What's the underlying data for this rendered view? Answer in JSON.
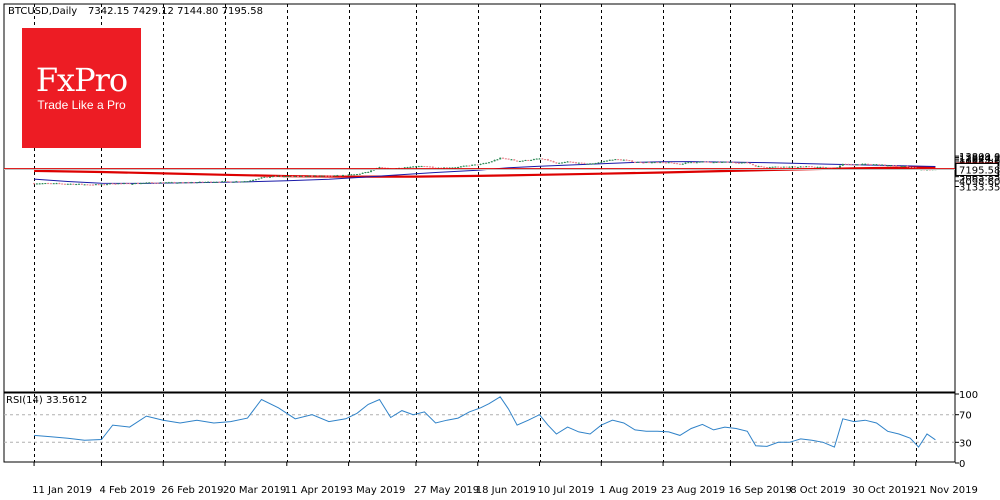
{
  "header": {
    "symbol": "BTCUSD,Daily",
    "ohlc": "7342.15 7429.12 7144.80 7195.58"
  },
  "logo": {
    "brand": "FxPro",
    "tagline": "Trade Like a Pro"
  },
  "colors": {
    "bull": "#2e8b57",
    "bear": "#e8808a",
    "ma_fast": "#1a1aa8",
    "ma_slow": "#dd0000",
    "level_line": "#dd0000",
    "rsi": "#2f82c8",
    "grid": "#000000"
  },
  "chart_data": [
    {
      "type": "candlestick",
      "title": "BTCUSD,Daily",
      "price_axis_ticks": [
        "13809.00",
        "12844.35",
        "11879.70",
        "10884.05",
        "9919.35",
        "8954.15",
        "7988.85",
        "6994.15",
        "6029.75",
        "5063.85",
        "4098.60",
        "3133.35"
      ],
      "price_axis_values": [
        13809.0,
        12844.35,
        11879.7,
        10884.05,
        9919.35,
        8954.15,
        7988.85,
        6994.15,
        6029.75,
        5063.85,
        4098.6,
        3133.35
      ],
      "ylim": [
        3133.35,
        13809.0
      ],
      "date_axis_labels": [
        "11 Jan 2019",
        "4 Feb 2019",
        "26 Feb 2019",
        "20 Mar 2019",
        "11 Apr 2019",
        "3 May 2019",
        "27 May 2019",
        "18 Jun 2019",
        "10 Jul 2019",
        "1 Aug 2019",
        "23 Aug 2019",
        "16 Sep 2019",
        "8 Oct 2019",
        "30 Oct 2019",
        "21 Nov 2019"
      ],
      "date_axis_dates": [
        "2019-01-11",
        "2019-02-04",
        "2019-02-26",
        "2019-03-20",
        "2019-04-11",
        "2019-05-03",
        "2019-05-27",
        "2019-06-18",
        "2019-07-10",
        "2019-08-01",
        "2019-08-23",
        "2019-09-16",
        "2019-10-08",
        "2019-10-30",
        "2019-11-21"
      ],
      "close_path": [
        [
          "2019-01-11",
          3680
        ],
        [
          "2019-01-17",
          3640
        ],
        [
          "2019-01-23",
          3580
        ],
        [
          "2019-01-29",
          3480
        ],
        [
          "2019-02-04",
          3430
        ],
        [
          "2019-02-08",
          3650
        ],
        [
          "2019-02-14",
          3620
        ],
        [
          "2019-02-20",
          3760
        ],
        [
          "2019-02-26",
          3800
        ],
        [
          "2019-03-04",
          3780
        ],
        [
          "2019-03-10",
          3860
        ],
        [
          "2019-03-16",
          3960
        ],
        [
          "2019-03-22",
          3990
        ],
        [
          "2019-03-28",
          4080
        ],
        [
          "2019-04-02",
          4850
        ],
        [
          "2019-04-08",
          5220
        ],
        [
          "2019-04-14",
          5100
        ],
        [
          "2019-04-20",
          5310
        ],
        [
          "2019-04-26",
          5210
        ],
        [
          "2019-05-02",
          5450
        ],
        [
          "2019-05-06",
          5720
        ],
        [
          "2019-05-10",
          6400
        ],
        [
          "2019-05-14",
          7900
        ],
        [
          "2019-05-18",
          7350
        ],
        [
          "2019-05-22",
          7920
        ],
        [
          "2019-05-26",
          8160
        ],
        [
          "2019-05-30",
          8600
        ],
        [
          "2019-06-03",
          7800
        ],
        [
          "2019-06-07",
          7900
        ],
        [
          "2019-06-11",
          8050
        ],
        [
          "2019-06-15",
          8800
        ],
        [
          "2019-06-19",
          9300
        ],
        [
          "2019-06-22",
          10200
        ],
        [
          "2019-06-26",
          12500
        ],
        [
          "2019-06-29",
          12000
        ],
        [
          "2019-07-02",
          10800
        ],
        [
          "2019-07-06",
          11400
        ],
        [
          "2019-07-10",
          12200
        ],
        [
          "2019-07-13",
          11300
        ],
        [
          "2019-07-16",
          9500
        ],
        [
          "2019-07-20",
          10500
        ],
        [
          "2019-07-24",
          9800
        ],
        [
          "2019-07-28",
          9500
        ],
        [
          "2019-08-01",
          10400
        ],
        [
          "2019-08-05",
          11800
        ],
        [
          "2019-08-09",
          11500
        ],
        [
          "2019-08-13",
          10300
        ],
        [
          "2019-08-17",
          10200
        ],
        [
          "2019-08-21",
          10100
        ],
        [
          "2019-08-25",
          10000
        ],
        [
          "2019-08-29",
          9500
        ],
        [
          "2019-09-02",
          10300
        ],
        [
          "2019-09-06",
          10500
        ],
        [
          "2019-09-10",
          10100
        ],
        [
          "2019-09-14",
          10350
        ],
        [
          "2019-09-18",
          10150
        ],
        [
          "2019-09-22",
          9950
        ],
        [
          "2019-09-25",
          8450
        ],
        [
          "2019-09-29",
          8100
        ],
        [
          "2019-10-03",
          8250
        ],
        [
          "2019-10-07",
          8150
        ],
        [
          "2019-10-11",
          8300
        ],
        [
          "2019-10-15",
          8200
        ],
        [
          "2019-10-19",
          7950
        ],
        [
          "2019-10-23",
          7450
        ],
        [
          "2019-10-26",
          9300
        ],
        [
          "2019-10-30",
          9150
        ],
        [
          "2019-11-03",
          9300
        ],
        [
          "2019-11-07",
          9200
        ],
        [
          "2019-11-11",
          8750
        ],
        [
          "2019-11-15",
          8550
        ],
        [
          "2019-11-19",
          8150
        ],
        [
          "2019-11-22",
          7300
        ],
        [
          "2019-11-25",
          7100
        ],
        [
          "2019-11-28",
          7195.58
        ]
      ],
      "ma_fast_path": [
        [
          "2019-01-11",
          4500
        ],
        [
          "2019-01-23",
          4000
        ],
        [
          "2019-02-04",
          3680
        ],
        [
          "2019-02-20",
          3650
        ],
        [
          "2019-03-10",
          3800
        ],
        [
          "2019-03-26",
          3900
        ],
        [
          "2019-04-11",
          4150
        ],
        [
          "2019-04-26",
          4450
        ],
        [
          "2019-05-08",
          4900
        ],
        [
          "2019-05-20",
          5500
        ],
        [
          "2019-06-03",
          6200
        ],
        [
          "2019-06-18",
          6900
        ],
        [
          "2019-06-29",
          7800
        ],
        [
          "2019-07-10",
          8450
        ],
        [
          "2019-07-22",
          9000
        ],
        [
          "2019-08-01",
          9500
        ],
        [
          "2019-08-12",
          10100
        ],
        [
          "2019-08-23",
          10500
        ],
        [
          "2019-09-01",
          10550
        ],
        [
          "2019-09-16",
          10300
        ],
        [
          "2019-09-28",
          10050
        ],
        [
          "2019-10-08",
          9700
        ],
        [
          "2019-10-20",
          9350
        ],
        [
          "2019-11-01",
          9000
        ],
        [
          "2019-11-12",
          8750
        ],
        [
          "2019-11-28",
          8300
        ]
      ],
      "ma_slow_path": [
        [
          "2019-01-11",
          6700
        ],
        [
          "2019-02-04",
          6350
        ],
        [
          "2019-02-26",
          5950
        ],
        [
          "2019-03-20",
          5550
        ],
        [
          "2019-04-11",
          5200
        ],
        [
          "2019-05-03",
          5050
        ],
        [
          "2019-05-27",
          5080
        ],
        [
          "2019-06-18",
          5250
        ],
        [
          "2019-07-10",
          5550
        ],
        [
          "2019-08-01",
          5850
        ],
        [
          "2019-08-23",
          6200
        ],
        [
          "2019-09-16",
          6700
        ],
        [
          "2019-10-08",
          7200
        ],
        [
          "2019-10-30",
          7600
        ],
        [
          "2019-11-28",
          8050
        ]
      ],
      "level_line": {
        "value": 7500.0,
        "label": "7500.00"
      },
      "last_price": {
        "value": 7195.58,
        "label": "7195.58"
      }
    },
    {
      "type": "line",
      "title": "RSI(14) 33.5612",
      "ylim": [
        0,
        100
      ],
      "axis_ticks": [
        "100",
        "70",
        "30",
        "0"
      ],
      "axis_values": [
        100,
        70,
        30,
        0
      ],
      "levels": [
        70,
        30
      ],
      "current": 33.5612,
      "values": [
        [
          "2019-01-11",
          40
        ],
        [
          "2019-01-17",
          38
        ],
        [
          "2019-01-23",
          36
        ],
        [
          "2019-01-29",
          33
        ],
        [
          "2019-02-04",
          34
        ],
        [
          "2019-02-08",
          55
        ],
        [
          "2019-02-14",
          52
        ],
        [
          "2019-02-20",
          68
        ],
        [
          "2019-02-26",
          62
        ],
        [
          "2019-03-04",
          58
        ],
        [
          "2019-03-10",
          62
        ],
        [
          "2019-03-16",
          58
        ],
        [
          "2019-03-22",
          60
        ],
        [
          "2019-03-28",
          65
        ],
        [
          "2019-04-02",
          92
        ],
        [
          "2019-04-08",
          80
        ],
        [
          "2019-04-14",
          64
        ],
        [
          "2019-04-20",
          70
        ],
        [
          "2019-04-26",
          60
        ],
        [
          "2019-05-02",
          64
        ],
        [
          "2019-05-06",
          72
        ],
        [
          "2019-05-10",
          85
        ],
        [
          "2019-05-14",
          92
        ],
        [
          "2019-05-18",
          66
        ],
        [
          "2019-05-22",
          76
        ],
        [
          "2019-05-26",
          70
        ],
        [
          "2019-05-30",
          74
        ],
        [
          "2019-06-03",
          58
        ],
        [
          "2019-06-07",
          62
        ],
        [
          "2019-06-11",
          65
        ],
        [
          "2019-06-15",
          74
        ],
        [
          "2019-06-19",
          80
        ],
        [
          "2019-06-22",
          86
        ],
        [
          "2019-06-26",
          96
        ],
        [
          "2019-06-29",
          78
        ],
        [
          "2019-07-02",
          55
        ],
        [
          "2019-07-06",
          62
        ],
        [
          "2019-07-10",
          70
        ],
        [
          "2019-07-13",
          55
        ],
        [
          "2019-07-16",
          42
        ],
        [
          "2019-07-20",
          52
        ],
        [
          "2019-07-24",
          45
        ],
        [
          "2019-07-28",
          42
        ],
        [
          "2019-08-01",
          55
        ],
        [
          "2019-08-05",
          62
        ],
        [
          "2019-08-09",
          58
        ],
        [
          "2019-08-13",
          48
        ],
        [
          "2019-08-17",
          46
        ],
        [
          "2019-08-21",
          46
        ],
        [
          "2019-08-25",
          45
        ],
        [
          "2019-08-29",
          40
        ],
        [
          "2019-09-02",
          50
        ],
        [
          "2019-09-06",
          56
        ],
        [
          "2019-09-10",
          48
        ],
        [
          "2019-09-14",
          52
        ],
        [
          "2019-09-18",
          50
        ],
        [
          "2019-09-22",
          46
        ],
        [
          "2019-09-25",
          25
        ],
        [
          "2019-09-29",
          24
        ],
        [
          "2019-10-03",
          30
        ],
        [
          "2019-10-07",
          30
        ],
        [
          "2019-10-11",
          35
        ],
        [
          "2019-10-15",
          33
        ],
        [
          "2019-10-19",
          30
        ],
        [
          "2019-10-23",
          23
        ],
        [
          "2019-10-26",
          64
        ],
        [
          "2019-10-30",
          60
        ],
        [
          "2019-11-03",
          62
        ],
        [
          "2019-11-07",
          58
        ],
        [
          "2019-11-11",
          46
        ],
        [
          "2019-11-15",
          42
        ],
        [
          "2019-11-19",
          36
        ],
        [
          "2019-11-22",
          23
        ],
        [
          "2019-11-25",
          42
        ],
        [
          "2019-11-28",
          33.56
        ]
      ]
    }
  ]
}
